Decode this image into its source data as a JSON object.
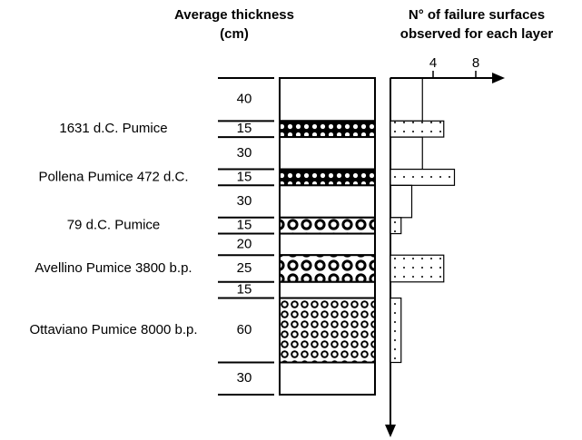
{
  "headers": {
    "thickness": [
      "Average thickness",
      "(cm)"
    ],
    "failures": [
      "N° of failure surfaces",
      "observed for each layer"
    ]
  },
  "axis": {
    "xlim": [
      0,
      10
    ],
    "xticks": [
      4,
      8
    ]
  },
  "layers": [
    {
      "thickness": 40,
      "failures": 3
    },
    {
      "name": "1631 d.C. Pumice",
      "thickness": 15,
      "failures": 5,
      "pattern": "small"
    },
    {
      "thickness": 30,
      "failures": 3
    },
    {
      "name": "Pollena Pumice 472 d.C.",
      "thickness": 15,
      "failures": 6,
      "pattern": "small"
    },
    {
      "thickness": 30,
      "failures": 2
    },
    {
      "name": "79 d.C. Pumice",
      "thickness": 15,
      "failures": 1,
      "pattern": "large"
    },
    {
      "thickness": 20,
      "failures": 0
    },
    {
      "name": "Avellino Pumice 3800 b.p.",
      "thickness": 25,
      "failures": 5,
      "pattern": "large"
    },
    {
      "thickness": 15,
      "failures": 0
    },
    {
      "name": "Ottaviano Pumice 8000 b.p.",
      "thickness": 60,
      "failures": 1,
      "pattern": "medium"
    },
    {
      "thickness": 30,
      "failures": 0
    }
  ]
}
